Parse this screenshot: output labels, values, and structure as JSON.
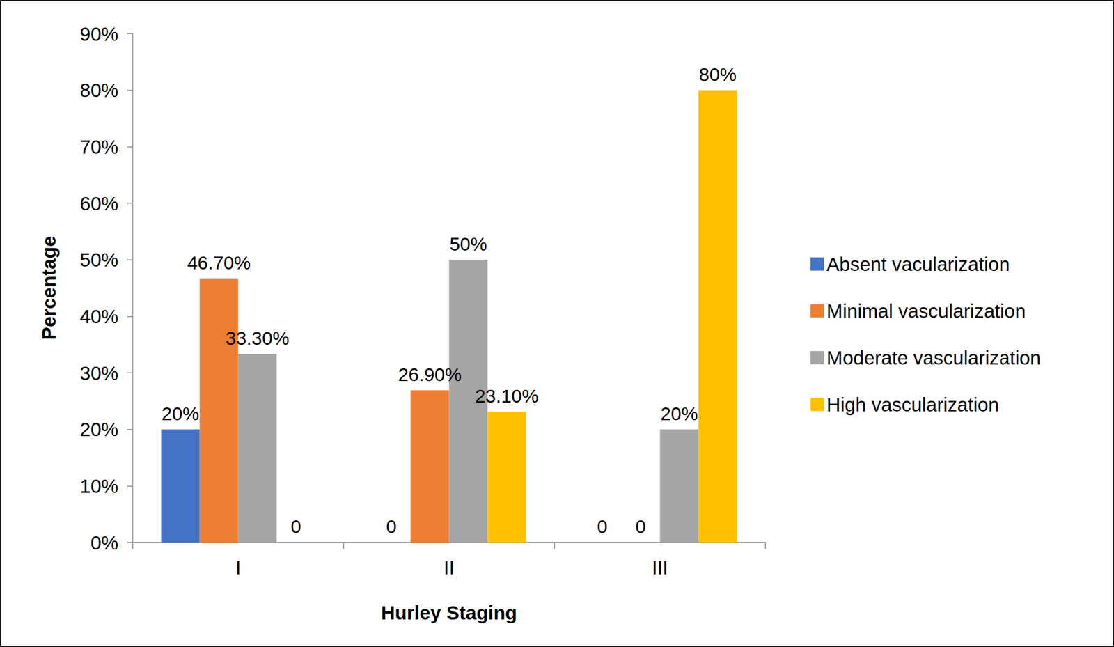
{
  "chart_data": {
    "type": "bar",
    "x_label": "Hurley Staging",
    "y_label": "Percentage",
    "categories": [
      "I",
      "II",
      "III"
    ],
    "series": [
      {
        "name": "Absent vacularization",
        "color": "#4472C4",
        "values": [
          20,
          0,
          0
        ],
        "value_labels": [
          "20%",
          "0",
          "0"
        ]
      },
      {
        "name": "Minimal vascularization",
        "color": "#ED7D31",
        "values": [
          46.7,
          26.9,
          0
        ],
        "value_labels": [
          "46.70%",
          "26.90%",
          "0"
        ]
      },
      {
        "name": "Moderate vascularization",
        "color": "#A5A5A5",
        "values": [
          33.3,
          50,
          20
        ],
        "value_labels": [
          "33.30%",
          "50%",
          "20%"
        ]
      },
      {
        "name": "High vascularization",
        "color": "#FFC000",
        "values": [
          0,
          23.1,
          80
        ],
        "value_labels": [
          "0",
          "23.10%",
          "80%"
        ]
      }
    ],
    "ylim": [
      0,
      90
    ],
    "yticks": [
      {
        "value": 0,
        "label": "0%"
      },
      {
        "value": 10,
        "label": "10%"
      },
      {
        "value": 20,
        "label": "20%"
      },
      {
        "value": 30,
        "label": "30%"
      },
      {
        "value": 40,
        "label": "40%"
      },
      {
        "value": 50,
        "label": "50%"
      },
      {
        "value": 60,
        "label": "60%"
      },
      {
        "value": 70,
        "label": "70%"
      },
      {
        "value": 80,
        "label": "80%"
      },
      {
        "value": 90,
        "label": "90%"
      }
    ],
    "grid": false,
    "legend": "right",
    "data_labels": true
  }
}
